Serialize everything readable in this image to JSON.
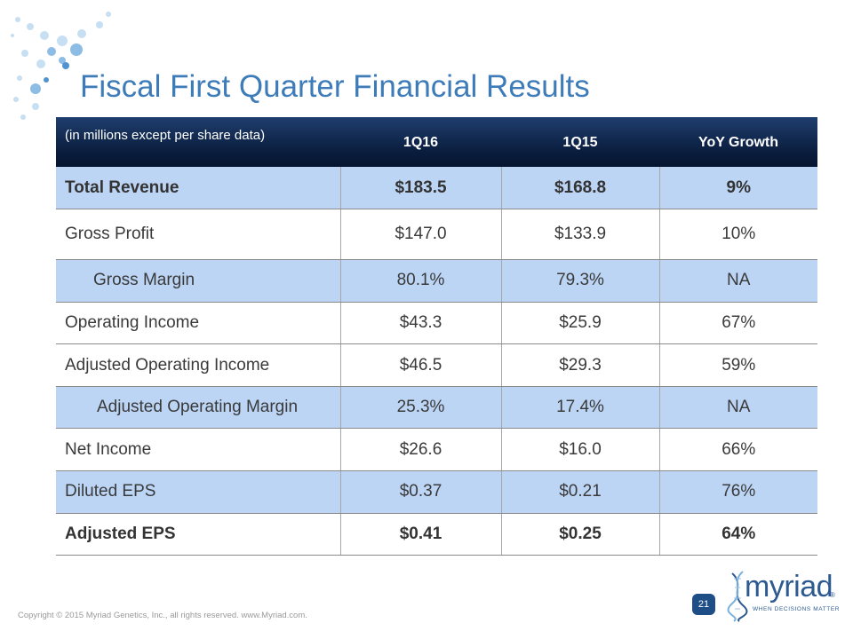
{
  "slide": {
    "title": "Fiscal First Quarter Financial Results",
    "footer": "Copyright © 2015 Myriad Genetics, Inc., all rights reserved.  www.Myriad.com.",
    "page_number": "21"
  },
  "table": {
    "note": "(in millions except per share data)",
    "headers": [
      "1Q16",
      "1Q15",
      "YoY Growth"
    ],
    "rows": [
      {
        "label": "Total Revenue",
        "q16": "$183.5",
        "q15": "$168.8",
        "yoy": "9%"
      },
      {
        "label": "Gross Profit",
        "q16": "$147.0",
        "q15": "$133.9",
        "yoy": "10%"
      },
      {
        "label": "Gross Margin",
        "q16": "80.1%",
        "q15": "79.3%",
        "yoy": "NA"
      },
      {
        "label": "Operating Income",
        "q16": "$43.3",
        "q15": "$25.9",
        "yoy": "67%"
      },
      {
        "label": "Adjusted Operating Income",
        "q16": "$46.5",
        "q15": "$29.3",
        "yoy": "59%"
      },
      {
        "label": "Adjusted Operating Margin",
        "q16": "25.3%",
        "q15": "17.4%",
        "yoy": "NA"
      },
      {
        "label": "Net Income",
        "q16": "$26.6",
        "q15": "$16.0",
        "yoy": "66%"
      },
      {
        "label": "Diluted EPS",
        "q16": "$0.37",
        "q15": "$0.21",
        "yoy": "76%"
      },
      {
        "label": "Adjusted EPS",
        "q16": "$0.41",
        "q15": "$0.25",
        "yoy": "64%"
      }
    ]
  },
  "logo": {
    "wordmark": "myriad",
    "tagline": "WHEN DECISIONS MATTER",
    "registered": "®"
  },
  "colors": {
    "title": "#3d7cb8",
    "header_bg": "#0a1d3d",
    "row_shade": "#bcd5f5",
    "page_badge": "#1f4d85"
  }
}
